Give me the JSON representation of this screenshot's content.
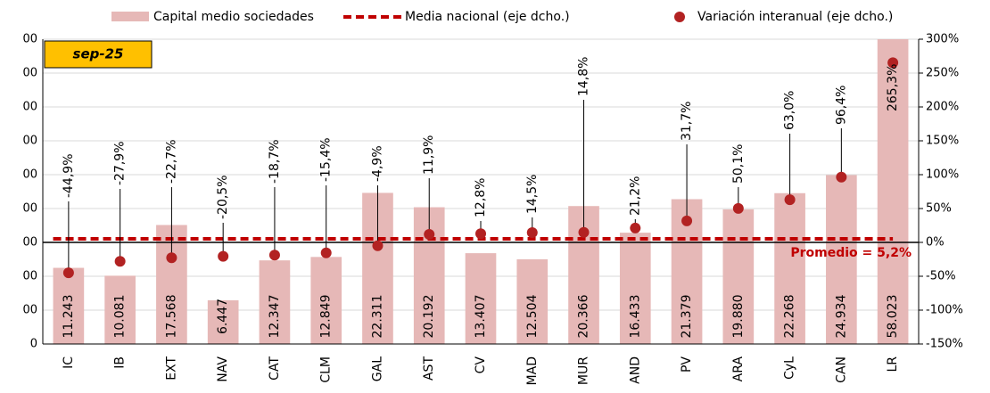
{
  "chart_data": {
    "type": "bar-line-dot",
    "annotations": {
      "date": "sep-25",
      "average": "Promedio = 5,2%"
    },
    "categories": [
      "IC",
      "IB",
      "EXT",
      "NAV",
      "CAT",
      "CLM",
      "GAL",
      "AST",
      "CV",
      "MAD",
      "MUR",
      "AND",
      "PV",
      "ARA",
      "CyL",
      "CAN",
      "LR"
    ],
    "series": [
      {
        "name": "Capital medio sociedades",
        "color": "#e6b8b7",
        "kind": "bar",
        "values": [
          11243,
          10081,
          17568,
          6447,
          12347,
          12849,
          22311,
          20192,
          13407,
          12504,
          20366,
          16433,
          21379,
          19880,
          22268,
          24934,
          58023
        ],
        "value_labels": [
          "11.243",
          "10.081",
          "17.568",
          "6.447",
          "12.347",
          "12.849",
          "22.311",
          "20.192",
          "13.407",
          "12.504",
          "20.366",
          "16.433",
          "21.379",
          "19.880",
          "22.268",
          "24.934",
          "58.023"
        ]
      },
      {
        "name": "Media nacional (eje dcho.)",
        "color": "#c00000",
        "kind": "line",
        "axis": "y2",
        "values": [
          5.2,
          5.2,
          5.2,
          5.2,
          5.2,
          5.2,
          5.2,
          5.2,
          5.2,
          5.2,
          5.2,
          5.2,
          5.2,
          5.2,
          5.2,
          5.2,
          5.2
        ]
      },
      {
        "name": "Variación interanual (eje dcho.)",
        "color": "#b22222",
        "kind": "dot",
        "axis": "y2",
        "values": [
          -44.9,
          -27.9,
          -22.7,
          -20.5,
          -18.7,
          -15.4,
          -4.9,
          11.9,
          12.8,
          14.5,
          14.8,
          21.2,
          31.7,
          50.1,
          63.0,
          96.4,
          265.3
        ],
        "value_labels": [
          "-44,9%",
          "-27,9%",
          "-22,7%",
          "-20,5%",
          "-18,7%",
          "-15,4%",
          "-4,9%",
          "11,9%",
          "12,8%",
          "14,5%",
          "14,8%",
          "21,2%",
          "31,7%",
          "50,1%",
          "63,0%",
          "96,4%",
          "265,3%"
        ]
      }
    ],
    "ylim": [
      0,
      45000
    ],
    "yticks": [
      {
        "value": 0,
        "label": "0"
      },
      {
        "value": 5000,
        "label": "00"
      },
      {
        "value": 10000,
        "label": "00"
      },
      {
        "value": 15000,
        "label": "00"
      },
      {
        "value": 20000,
        "label": "00"
      },
      {
        "value": 25000,
        "label": "00"
      },
      {
        "value": 30000,
        "label": "00"
      },
      {
        "value": 35000,
        "label": "00"
      },
      {
        "value": 40000,
        "label": "00"
      },
      {
        "value": 45000,
        "label": "00"
      }
    ],
    "y2lim": [
      -150,
      300
    ],
    "y2ticks": [
      {
        "value": -150,
        "label": "-150%"
      },
      {
        "value": -100,
        "label": "-100%"
      },
      {
        "value": -50,
        "label": "-50%"
      },
      {
        "value": 0,
        "label": "0%"
      },
      {
        "value": 50,
        "label": "50%"
      },
      {
        "value": 100,
        "label": "100%"
      },
      {
        "value": 150,
        "label": "150%"
      },
      {
        "value": 200,
        "label": "200%"
      },
      {
        "value": 250,
        "label": "250%"
      },
      {
        "value": 300,
        "label": "300%"
      }
    ]
  }
}
